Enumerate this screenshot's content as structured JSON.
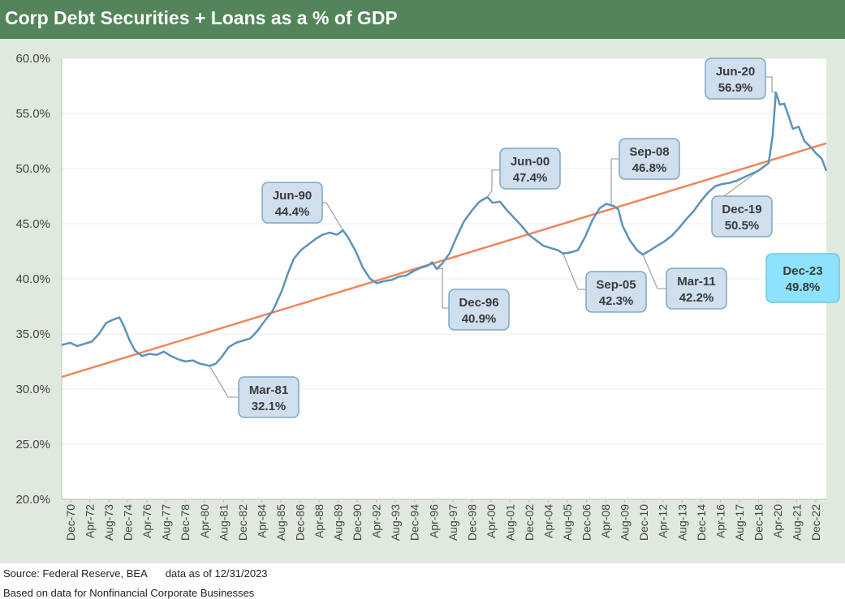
{
  "header": {
    "title": "Corp Debt Securities + Loans as a % of GDP"
  },
  "footer": {
    "source": "Source: Federal Reserve, BEA",
    "as_of": "data as of 12/31/2023",
    "note": "Based on data for Nonfinancial Corporate Businesses"
  },
  "colors": {
    "header_bg": "#53845a",
    "frame_bg": "#dfe9dd",
    "series": "#5b93b8",
    "trend": "#f0855a",
    "callout_bg": "#cfdfee",
    "callout_border": "#7ea7c6",
    "callout_highlight_bg": "#8ee2fb",
    "leader": "#a6a6a6"
  },
  "chart_data": {
    "type": "line",
    "ylim": [
      20,
      60
    ],
    "y_ticks": [
      20,
      25,
      30,
      35,
      40,
      45,
      50,
      55,
      60
    ],
    "y_tick_labels": [
      "20.0%",
      "25.0%",
      "30.0%",
      "35.0%",
      "40.0%",
      "45.0%",
      "50.0%",
      "55.0%",
      "60.0%"
    ],
    "x_tick_labels": [
      "Dec-70",
      "Apr-72",
      "Aug-73",
      "Dec-74",
      "Apr-76",
      "Aug-77",
      "Dec-78",
      "Apr-80",
      "Aug-81",
      "Dec-82",
      "Apr-84",
      "Aug-85",
      "Dec-86",
      "Apr-88",
      "Aug-89",
      "Dec-90",
      "Apr-92",
      "Aug-93",
      "Dec-94",
      "Apr-96",
      "Aug-97",
      "Dec-98",
      "Apr-00",
      "Aug-01",
      "Dec-02",
      "Apr-04",
      "Aug-05",
      "Dec-06",
      "Apr-08",
      "Aug-09",
      "Dec-10",
      "Apr-12",
      "Aug-13",
      "Dec-14",
      "Apr-16",
      "Aug-17",
      "Dec-18",
      "Apr-20",
      "Aug-21",
      "Dec-22"
    ],
    "series": [
      {
        "x": [
          1970.92,
          1971.5,
          1972.0,
          1972.5,
          1973.0,
          1973.5,
          1974.0,
          1974.5,
          1974.92,
          1975.2,
          1975.6,
          1976.0,
          1976.5,
          1977.0,
          1977.5,
          1978.0,
          1978.5,
          1979.0,
          1979.5,
          1980.0,
          1980.5,
          1980.9,
          1981.17,
          1981.6,
          1982.0,
          1982.5,
          1983.0,
          1983.5,
          1984.0,
          1984.5,
          1985.0,
          1985.5,
          1985.8,
          1986.2,
          1986.6,
          1987.0,
          1987.5,
          1988.0,
          1988.5,
          1989.0,
          1989.5,
          1990.0,
          1990.42,
          1990.8,
          1991.3,
          1991.8,
          1992.3,
          1992.75,
          1993.3,
          1993.8,
          1994.3,
          1994.8,
          1995.3,
          1995.8,
          1996.3,
          1996.6,
          1996.92,
          1997.3,
          1997.8,
          1998.3,
          1998.8,
          1999.3,
          1999.8,
          2000.0,
          2000.42,
          2000.8,
          2001.3,
          2001.8,
          2002.3,
          2002.8,
          2003.3,
          2003.8,
          2004.3,
          2004.8,
          2005.3,
          2005.67,
          2006.2,
          2006.7,
          2007.2,
          2007.7,
          2008.2,
          2008.67,
          2009.2,
          2009.5,
          2009.8,
          2010.3,
          2010.8,
          2011.2,
          2011.6,
          2012.2,
          2012.7,
          2013.2,
          2013.7,
          2014.2,
          2014.7,
          2015.2,
          2015.7,
          2016.2,
          2016.7,
          2017.2,
          2017.7,
          2018.2,
          2018.7,
          2019.2,
          2019.92,
          2020.2,
          2020.42,
          2020.7,
          2021.0,
          2021.3,
          2021.6,
          2022.0,
          2022.4,
          2022.8,
          2023.2,
          2023.6,
          2023.92
        ],
        "values": [
          34.0,
          34.2,
          33.9,
          34.1,
          34.3,
          35.0,
          36.0,
          36.3,
          36.5,
          35.8,
          34.5,
          33.5,
          33.0,
          33.2,
          33.1,
          33.4,
          33.0,
          32.7,
          32.5,
          32.6,
          32.3,
          32.2,
          32.1,
          32.3,
          32.9,
          33.8,
          34.2,
          34.4,
          34.6,
          35.3,
          36.2,
          37.0,
          37.8,
          39.0,
          40.5,
          41.8,
          42.6,
          43.1,
          43.6,
          44.0,
          44.2,
          44.0,
          44.4,
          43.7,
          42.5,
          41.0,
          40.0,
          39.6,
          39.8,
          39.9,
          40.2,
          40.3,
          40.7,
          41.0,
          41.2,
          41.5,
          40.9,
          41.4,
          42.3,
          43.8,
          45.2,
          46.1,
          46.9,
          47.1,
          47.4,
          46.9,
          47.0,
          46.2,
          45.5,
          44.8,
          44.0,
          43.5,
          43.0,
          42.8,
          42.6,
          42.3,
          42.4,
          42.6,
          43.8,
          45.3,
          46.4,
          46.8,
          46.6,
          46.3,
          44.8,
          43.5,
          42.6,
          42.2,
          42.5,
          43.0,
          43.4,
          43.9,
          44.6,
          45.4,
          46.1,
          47.0,
          47.8,
          48.4,
          48.6,
          48.7,
          48.9,
          49.2,
          49.5,
          49.8,
          50.5,
          53.0,
          56.9,
          55.8,
          55.9,
          54.8,
          53.6,
          53.8,
          52.5,
          52.0,
          51.4,
          50.9,
          49.8
        ]
      }
    ],
    "trendline": {
      "x": [
        1970.92,
        2023.92
      ],
      "values": [
        31.1,
        52.3
      ]
    },
    "annotations": [
      {
        "label": "Mar-81",
        "value": "32.1%",
        "x": 1981.17,
        "y": 32.1
      },
      {
        "label": "Jun-90",
        "value": "44.4%",
        "x": 1990.42,
        "y": 44.4
      },
      {
        "label": "Dec-96",
        "value": "40.9%",
        "x": 1996.92,
        "y": 40.9
      },
      {
        "label": "Jun-00",
        "value": "47.4%",
        "x": 2000.42,
        "y": 47.4
      },
      {
        "label": "Sep-05",
        "value": "42.3%",
        "x": 2005.67,
        "y": 42.3
      },
      {
        "label": "Sep-08",
        "value": "46.8%",
        "x": 2008.67,
        "y": 46.8
      },
      {
        "label": "Mar-11",
        "value": "42.2%",
        "x": 2011.2,
        "y": 42.2
      },
      {
        "label": "Dec-19",
        "value": "50.5%",
        "x": 2019.92,
        "y": 50.5
      },
      {
        "label": "Jun-20",
        "value": "56.9%",
        "x": 2020.42,
        "y": 56.9
      },
      {
        "label": "Dec-23",
        "value": "49.8%",
        "x": 2023.92,
        "y": 49.8
      }
    ]
  }
}
